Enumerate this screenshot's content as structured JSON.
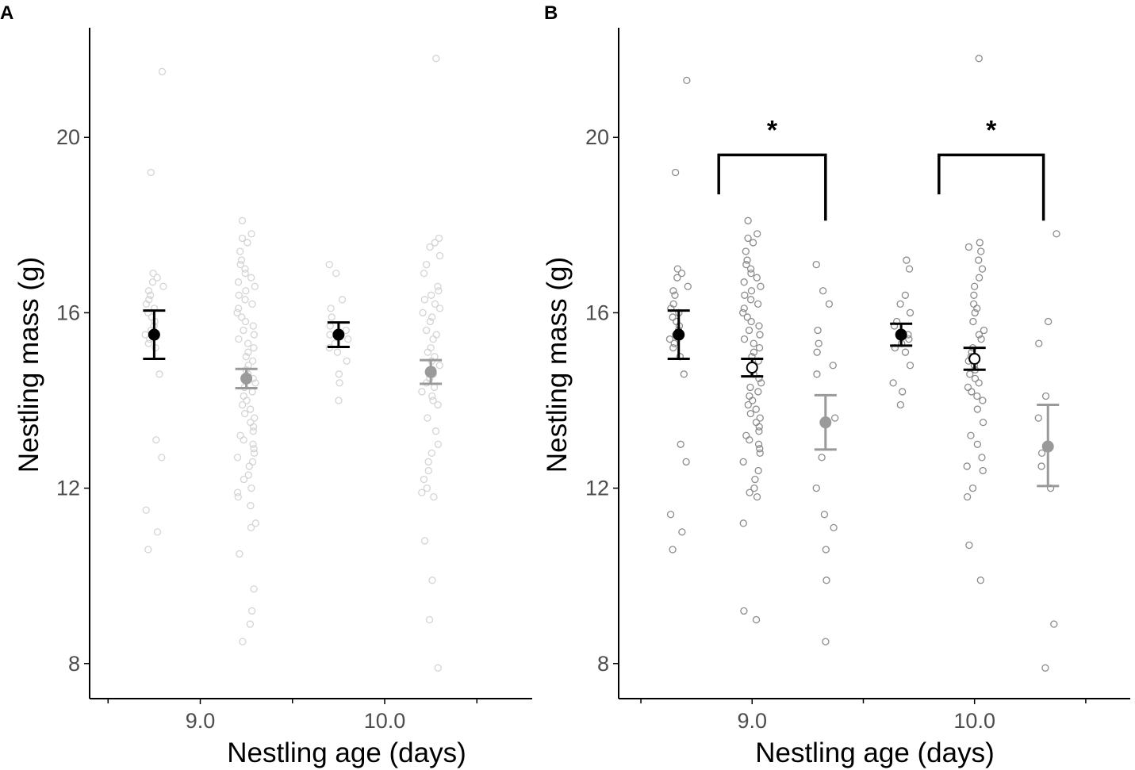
{
  "colors": {
    "axis": "#000000",
    "tick_label": "#4d4d4d",
    "summary_dark": "#000000",
    "summary_gray": "#9a9a9a",
    "points_faint": "#d4d4d4",
    "points_dark": "#8c8c8c"
  },
  "chart_data": [
    {
      "panel": "A",
      "type": "scatter",
      "xlabel": "Nestling age (days)",
      "ylabel": "Nestling mass (g)",
      "ylim": [
        7.2,
        22.5
      ],
      "xlim": [
        8.4,
        10.8
      ],
      "x_ticks": [
        {
          "value": 9.0,
          "label": "9.0"
        },
        {
          "value": 10.0,
          "label": "10.0"
        }
      ],
      "y_ticks": [
        {
          "value": 8,
          "label": "8"
        },
        {
          "value": 12,
          "label": "12"
        },
        {
          "value": 16,
          "label": "16"
        },
        {
          "value": 20,
          "label": "20"
        }
      ],
      "legend": "none",
      "groups": [
        {
          "name": "age 9.0 group 1",
          "x": 8.75,
          "mean": 15.5,
          "ci": [
            14.95,
            16.05
          ],
          "color": "summary_dark",
          "open": false,
          "points": [
            21.5,
            19.2,
            16.9,
            16.8,
            16.7,
            16.6,
            16.5,
            16.4,
            16.3,
            16.2,
            16.1,
            16.0,
            15.9,
            15.8,
            15.7,
            15.6,
            15.5,
            15.4,
            15.3,
            15.2,
            14.6,
            13.1,
            12.7,
            11.5,
            11.0,
            10.6
          ]
        },
        {
          "name": "age 9.0 group 2",
          "x": 9.25,
          "mean": 14.5,
          "ci": [
            14.28,
            14.72
          ],
          "color": "summary_gray",
          "open": false,
          "points": [
            18.1,
            17.8,
            17.7,
            17.6,
            17.4,
            17.2,
            17.1,
            17.0,
            16.9,
            16.8,
            16.7,
            16.6,
            16.5,
            16.4,
            16.3,
            16.2,
            16.1,
            16.0,
            15.9,
            15.8,
            15.7,
            15.6,
            15.5,
            15.4,
            15.3,
            15.2,
            15.1,
            15.0,
            14.9,
            14.8,
            14.7,
            14.6,
            14.5,
            14.4,
            14.3,
            14.2,
            14.1,
            14.0,
            13.9,
            13.8,
            13.7,
            13.6,
            13.5,
            13.4,
            13.3,
            13.2,
            13.1,
            13.0,
            12.9,
            12.8,
            12.7,
            12.6,
            12.5,
            12.3,
            12.2,
            12.0,
            11.9,
            11.8,
            11.6,
            11.2,
            11.1,
            10.5,
            9.7,
            9.2,
            8.9,
            8.5
          ]
        },
        {
          "name": "age 10.0 group 1",
          "x": 9.75,
          "mean": 15.5,
          "ci": [
            15.22,
            15.78
          ],
          "color": "summary_dark",
          "open": false,
          "points": [
            17.1,
            16.9,
            16.3,
            16.1,
            15.9,
            15.7,
            15.6,
            15.5,
            15.4,
            15.3,
            15.2,
            15.1,
            14.9,
            14.6,
            14.4,
            14.0
          ]
        },
        {
          "name": "age 10.0 group 2",
          "x": 10.25,
          "mean": 14.65,
          "ci": [
            14.38,
            14.92
          ],
          "color": "summary_gray",
          "open": false,
          "points": [
            21.8,
            17.7,
            17.6,
            17.5,
            17.3,
            17.1,
            16.9,
            16.6,
            16.5,
            16.4,
            16.3,
            16.2,
            16.1,
            16.0,
            15.9,
            15.8,
            15.6,
            15.5,
            15.4,
            15.2,
            15.1,
            15.0,
            14.9,
            14.8,
            14.7,
            14.6,
            14.5,
            14.4,
            14.3,
            14.2,
            14.1,
            14.0,
            13.9,
            13.6,
            13.3,
            13.0,
            12.8,
            12.6,
            12.4,
            12.2,
            12.0,
            11.9,
            11.8,
            10.8,
            9.9,
            9.0,
            7.9
          ]
        }
      ]
    },
    {
      "panel": "B",
      "type": "scatter",
      "xlabel": "Nestling age (days)",
      "ylabel": "Nestling mass (g)",
      "ylim": [
        7.2,
        22.5
      ],
      "xlim": [
        8.4,
        10.7
      ],
      "x_ticks": [
        {
          "value": 9.0,
          "label": "9.0"
        },
        {
          "value": 10.0,
          "label": "10.0"
        }
      ],
      "y_ticks": [
        {
          "value": 8,
          "label": "8"
        },
        {
          "value": 12,
          "label": "12"
        },
        {
          "value": 16,
          "label": "16"
        },
        {
          "value": 20,
          "label": "20"
        }
      ],
      "legend": "none",
      "groups": [
        {
          "name": "age 9.0 group 1",
          "x": 8.67,
          "mean": 15.5,
          "ci": [
            14.95,
            16.05
          ],
          "color": "summary_dark",
          "open": false,
          "points": [
            21.3,
            19.2,
            17.0,
            16.9,
            16.8,
            16.6,
            16.5,
            16.4,
            16.2,
            16.1,
            16.0,
            15.9,
            15.8,
            15.7,
            15.6,
            15.5,
            15.4,
            15.3,
            15.2,
            15.0,
            14.6,
            13.0,
            12.6,
            11.4,
            11.0,
            10.6
          ]
        },
        {
          "name": "age 9.0 group 2",
          "x": 9.0,
          "mean": 14.75,
          "ci": [
            14.55,
            14.95
          ],
          "color": "summary_dark",
          "open": true,
          "points": [
            18.1,
            17.8,
            17.7,
            17.6,
            17.4,
            17.2,
            17.1,
            17.0,
            16.9,
            16.8,
            16.7,
            16.6,
            16.5,
            16.4,
            16.3,
            16.2,
            16.1,
            16.0,
            15.9,
            15.8,
            15.7,
            15.6,
            15.5,
            15.4,
            15.3,
            15.2,
            15.1,
            15.0,
            14.9,
            14.8,
            14.7,
            14.6,
            14.5,
            14.4,
            14.3,
            14.2,
            14.1,
            14.0,
            13.9,
            13.8,
            13.7,
            13.6,
            13.5,
            13.4,
            13.3,
            13.2,
            13.1,
            13.0,
            12.9,
            12.8,
            12.6,
            12.4,
            12.2,
            12.0,
            11.9,
            11.8,
            11.2,
            9.2,
            9.0
          ]
        },
        {
          "name": "age 9.0 group 3",
          "x": 9.33,
          "mean": 13.5,
          "ci": [
            12.88,
            14.12
          ],
          "color": "summary_gray",
          "open": false,
          "points": [
            17.1,
            16.5,
            16.2,
            15.6,
            15.3,
            15.1,
            14.8,
            14.6,
            13.6,
            12.7,
            12.0,
            11.4,
            11.1,
            10.6,
            9.9,
            8.5
          ]
        },
        {
          "name": "age 10.0 group 1",
          "x": 9.67,
          "mean": 15.5,
          "ci": [
            15.25,
            15.75
          ],
          "color": "summary_dark",
          "open": false,
          "points": [
            17.2,
            17.0,
            16.4,
            16.2,
            16.0,
            15.8,
            15.7,
            15.5,
            15.4,
            15.3,
            15.2,
            15.1,
            14.8,
            14.4,
            14.2,
            13.9
          ]
        },
        {
          "name": "age 10.0 group 2",
          "x": 10.0,
          "mean": 14.95,
          "ci": [
            14.7,
            15.2
          ],
          "color": "summary_dark",
          "open": true,
          "points": [
            21.8,
            17.6,
            17.5,
            17.4,
            17.2,
            17.0,
            16.8,
            16.6,
            16.4,
            16.2,
            16.1,
            16.0,
            15.8,
            15.6,
            15.5,
            15.4,
            15.2,
            15.1,
            15.0,
            14.9,
            14.8,
            14.7,
            14.6,
            14.5,
            14.4,
            14.3,
            14.2,
            14.1,
            14.0,
            13.8,
            13.5,
            13.2,
            13.0,
            12.7,
            12.5,
            12.4,
            12.0,
            11.8,
            10.7,
            9.9
          ]
        },
        {
          "name": "age 10.0 group 3",
          "x": 10.33,
          "mean": 12.95,
          "ci": [
            12.05,
            13.9
          ],
          "color": "summary_gray",
          "open": false,
          "points": [
            17.8,
            15.8,
            15.3,
            14.1,
            13.6,
            12.8,
            12.5,
            12.0,
            8.9,
            7.9
          ]
        }
      ],
      "annotations": [
        {
          "label": "*",
          "x_start": 8.85,
          "x_end": 9.33,
          "y_left": 18.7,
          "y_right": 18.1,
          "y_top": 19.6
        },
        {
          "label": "*",
          "x_start": 9.84,
          "x_end": 10.31,
          "y_left": 18.7,
          "y_right": 18.1,
          "y_top": 19.6
        }
      ]
    }
  ]
}
